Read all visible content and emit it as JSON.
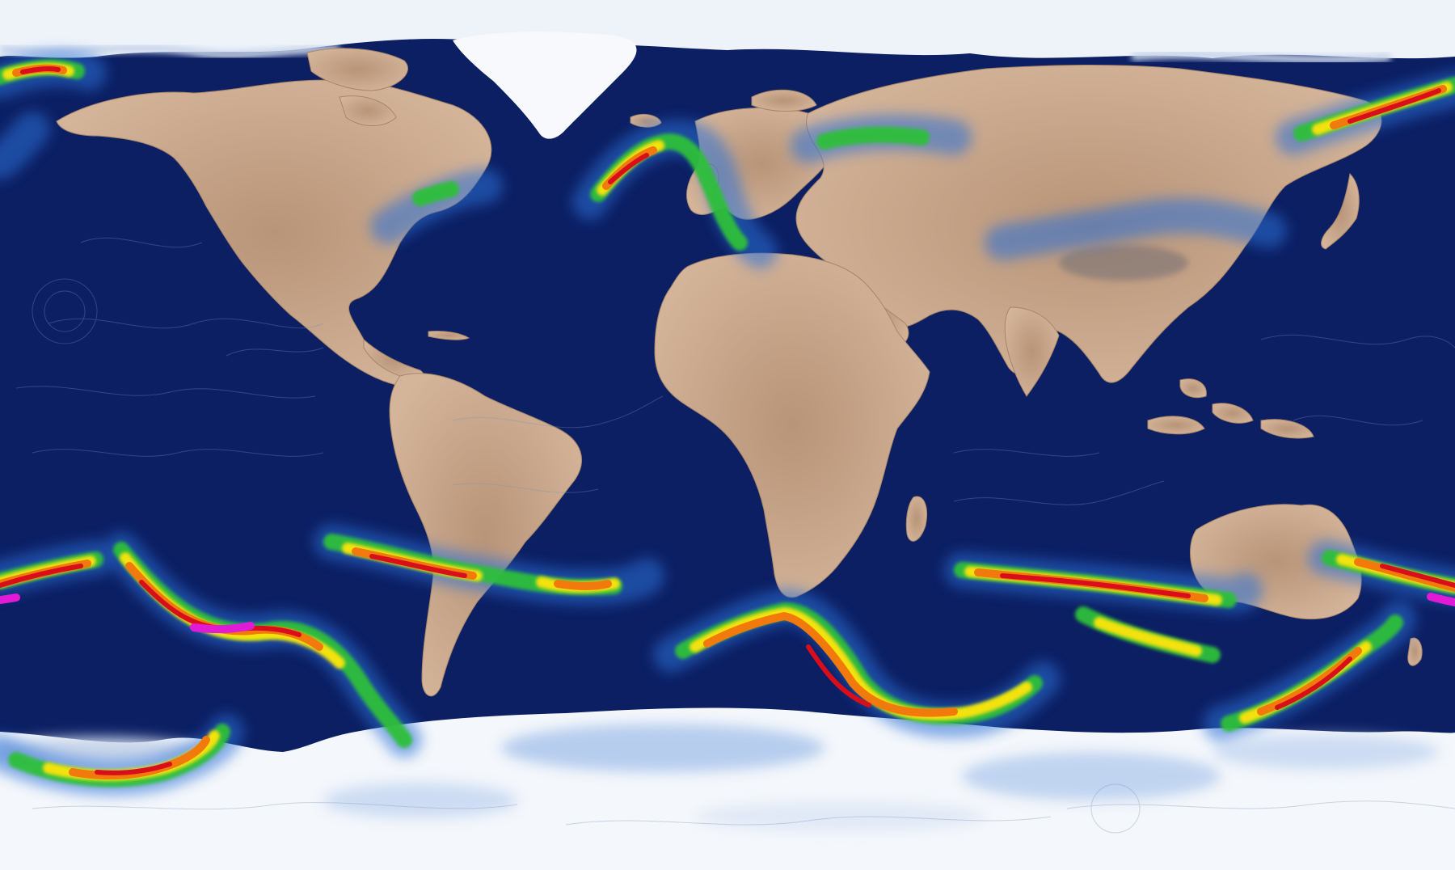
{
  "map": {
    "projection": "equirectangular",
    "layer": "jet-stream-wind-speed",
    "colors": {
      "ocean": "#0c1f63",
      "land": "#c9a586",
      "land_dark": "#9c7a62",
      "ice": "#f4f7fb",
      "ice_shadow": "#c9d6ea",
      "wind_low": "#2a6fd6",
      "wind_mid": "#2fbf3a",
      "wind_high": "#f3e20b",
      "wind_higher": "#f27a0c",
      "wind_max": "#d80f1a",
      "wind_extreme": "#e11ad6"
    },
    "icons": [
      "streamline-flow-icon"
    ]
  }
}
